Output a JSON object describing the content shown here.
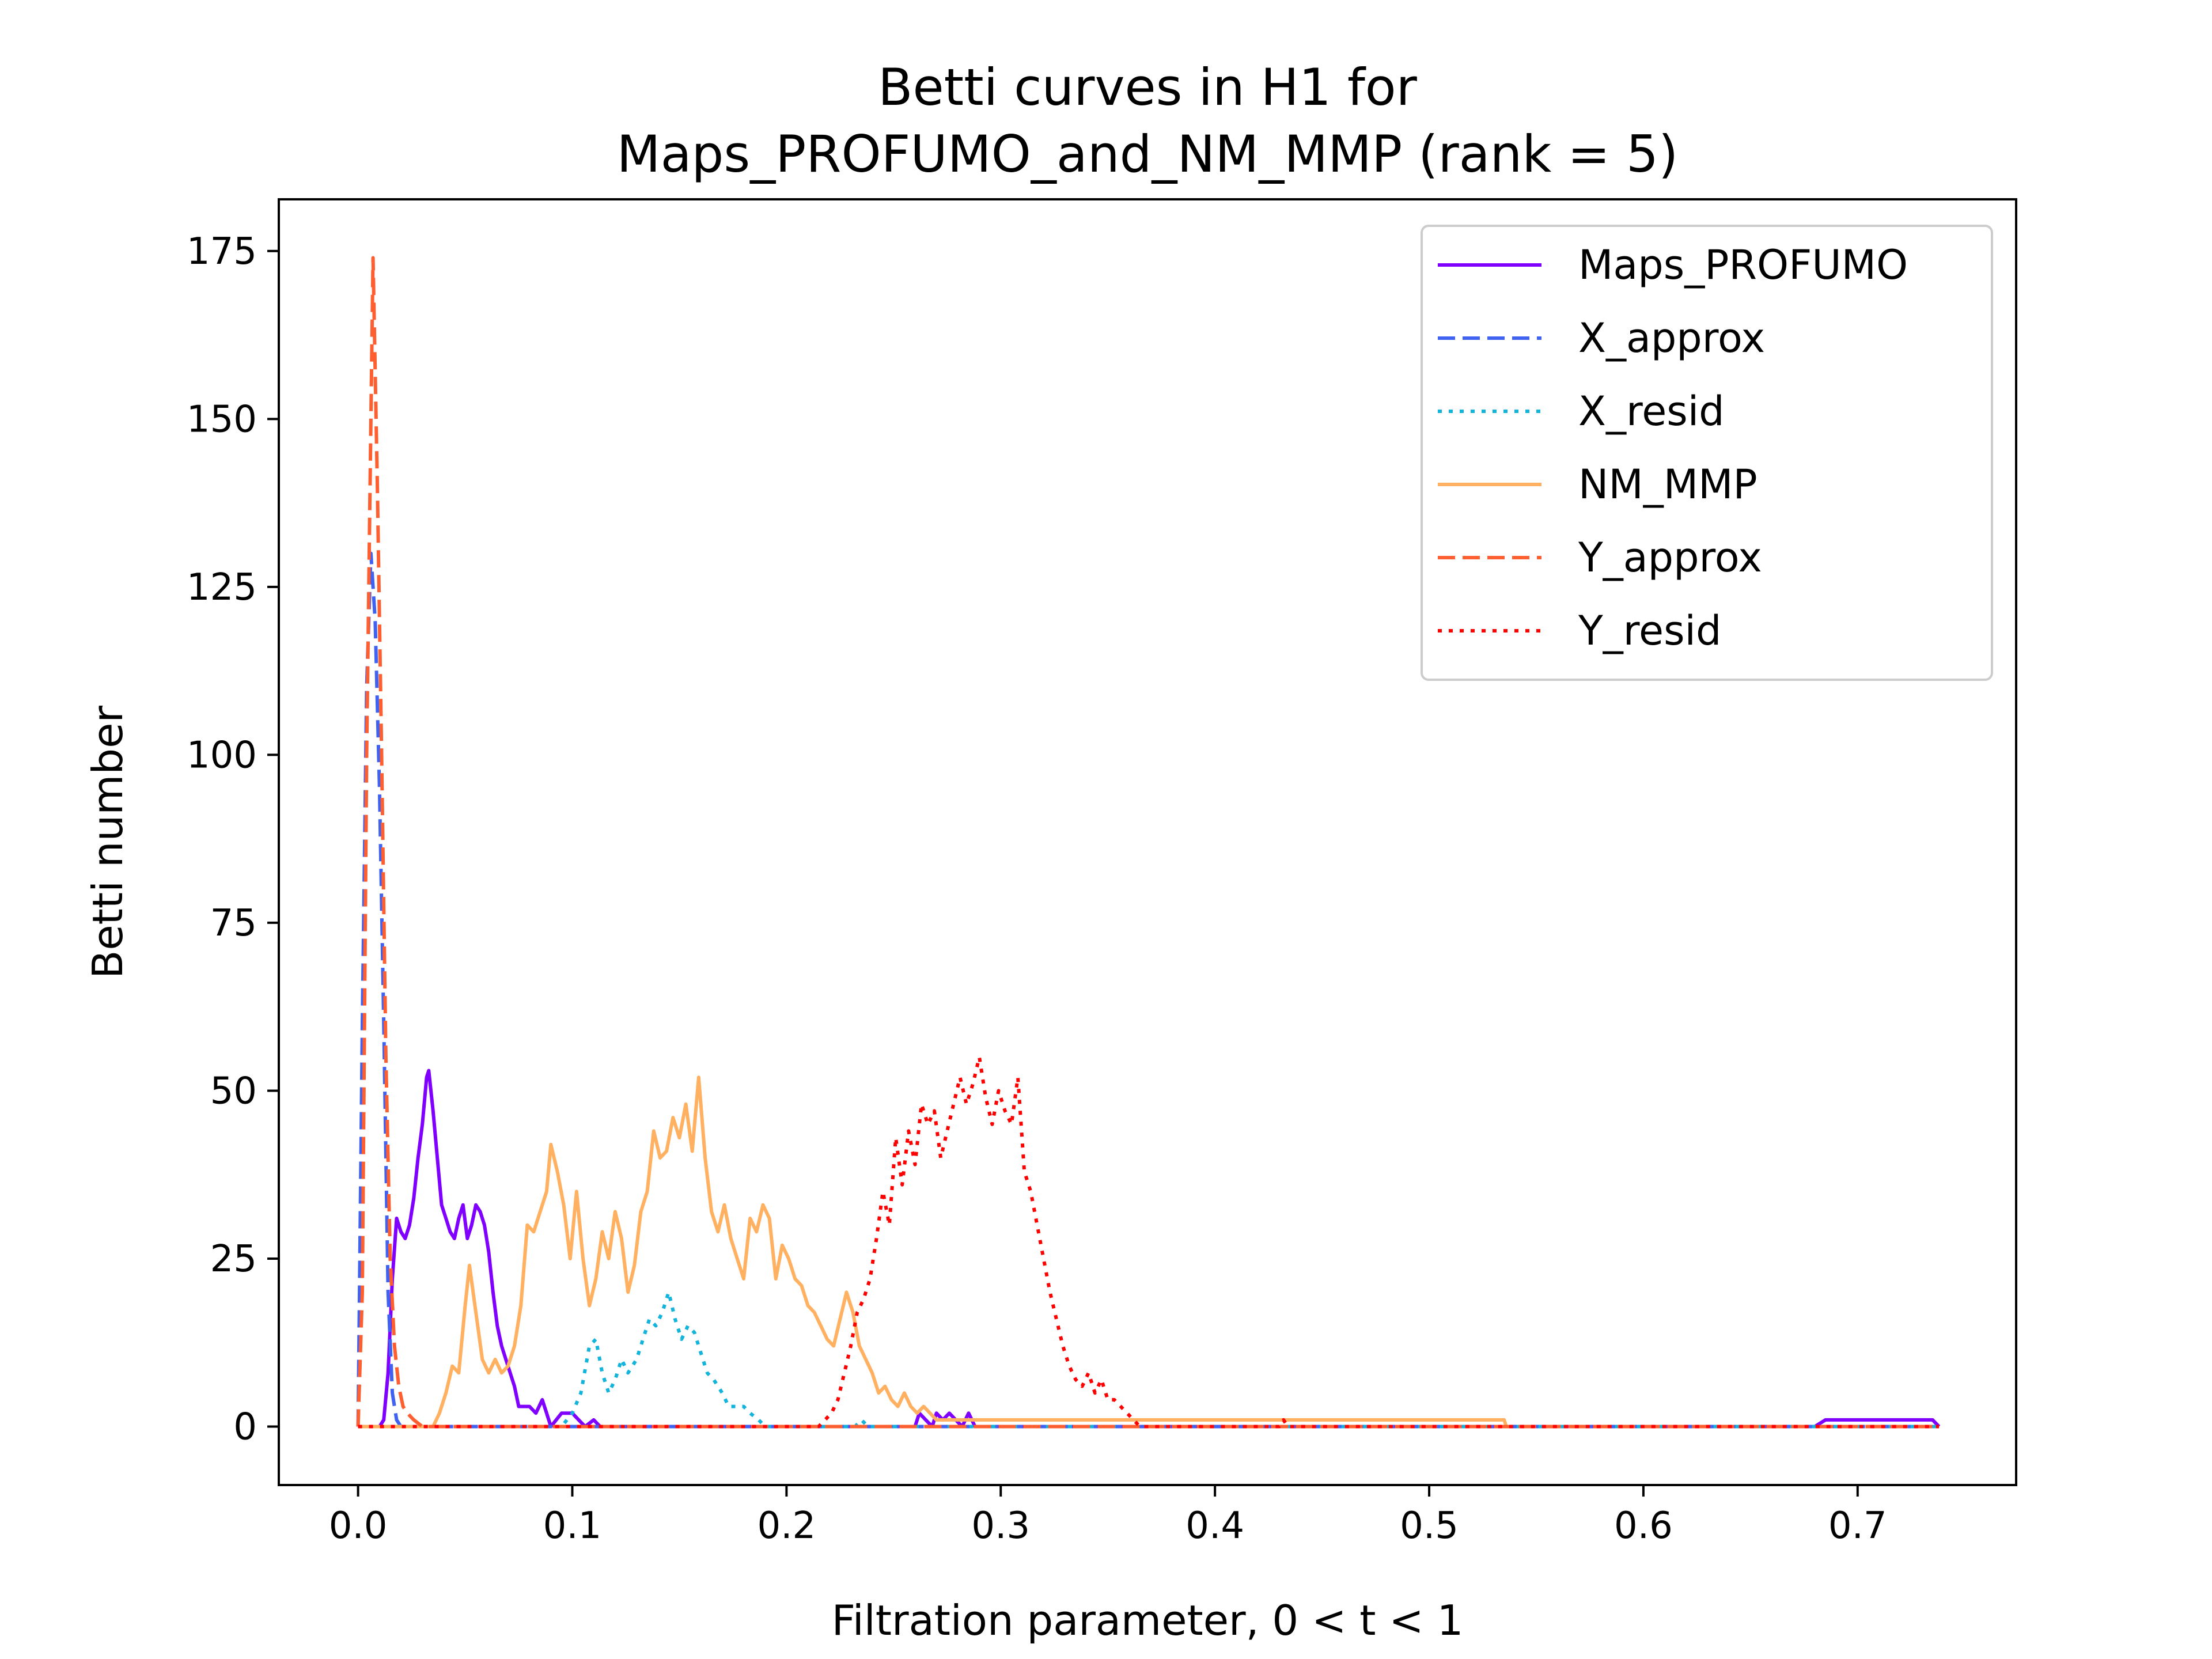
{
  "chart_data": {
    "type": "line",
    "title_line1": "Betti curves in H1 for",
    "title_line2": "Maps_PROFUMO_and_NM_MMP (rank = 5)",
    "xlabel": "Filtration parameter, 0 < t < 1",
    "ylabel": "Betti number",
    "xlim": [
      -0.037,
      0.774
    ],
    "ylim": [
      -8.7,
      182.7
    ],
    "xticks": [
      0.0,
      0.1,
      0.2,
      0.3,
      0.4,
      0.5,
      0.6,
      0.7
    ],
    "xtick_labels": [
      "0.0",
      "0.1",
      "0.2",
      "0.3",
      "0.4",
      "0.5",
      "0.6",
      "0.7"
    ],
    "yticks": [
      0,
      25,
      50,
      75,
      100,
      125,
      150,
      175
    ],
    "ytick_labels": [
      "0",
      "25",
      "50",
      "75",
      "100",
      "125",
      "150",
      "175"
    ],
    "grid": false,
    "legend_position": "top-right",
    "series": [
      {
        "name": "Maps_PROFUMO",
        "color": "#7f00ff",
        "dash": "solid",
        "points": [
          [
            0,
            0
          ],
          [
            0.01,
            0
          ],
          [
            0.012,
            1
          ],
          [
            0.014,
            8
          ],
          [
            0.016,
            22
          ],
          [
            0.018,
            31
          ],
          [
            0.02,
            29
          ],
          [
            0.022,
            28
          ],
          [
            0.024,
            30
          ],
          [
            0.026,
            34
          ],
          [
            0.028,
            40
          ],
          [
            0.03,
            45
          ],
          [
            0.032,
            52
          ],
          [
            0.033,
            53
          ],
          [
            0.035,
            47
          ],
          [
            0.037,
            40
          ],
          [
            0.039,
            33
          ],
          [
            0.041,
            31
          ],
          [
            0.043,
            29
          ],
          [
            0.045,
            28
          ],
          [
            0.047,
            31
          ],
          [
            0.049,
            33
          ],
          [
            0.051,
            28
          ],
          [
            0.053,
            30
          ],
          [
            0.055,
            33
          ],
          [
            0.057,
            32
          ],
          [
            0.059,
            30
          ],
          [
            0.061,
            26
          ],
          [
            0.063,
            20
          ],
          [
            0.065,
            15
          ],
          [
            0.067,
            12
          ],
          [
            0.07,
            9
          ],
          [
            0.073,
            6
          ],
          [
            0.075,
            3
          ],
          [
            0.08,
            3
          ],
          [
            0.083,
            2
          ],
          [
            0.086,
            4
          ],
          [
            0.088,
            2
          ],
          [
            0.09,
            0
          ],
          [
            0.095,
            2
          ],
          [
            0.1,
            2
          ],
          [
            0.103,
            1
          ],
          [
            0.106,
            0
          ],
          [
            0.11,
            1
          ],
          [
            0.113,
            0
          ],
          [
            0.26,
            0
          ],
          [
            0.262,
            2
          ],
          [
            0.265,
            1
          ],
          [
            0.268,
            0
          ],
          [
            0.27,
            2
          ],
          [
            0.273,
            1
          ],
          [
            0.276,
            2
          ],
          [
            0.279,
            1
          ],
          [
            0.282,
            0
          ],
          [
            0.285,
            2
          ],
          [
            0.288,
            0
          ],
          [
            0.68,
            0
          ],
          [
            0.685,
            1
          ],
          [
            0.735,
            1
          ],
          [
            0.738,
            0
          ]
        ]
      },
      {
        "name": "X_approx",
        "color": "#4062f0",
        "dash": "dashed",
        "points": [
          [
            0,
            0
          ],
          [
            0.002,
            60
          ],
          [
            0.004,
            110
          ],
          [
            0.006,
            130
          ],
          [
            0.008,
            120
          ],
          [
            0.01,
            95
          ],
          [
            0.012,
            60
          ],
          [
            0.014,
            20
          ],
          [
            0.016,
            5
          ],
          [
            0.018,
            1
          ],
          [
            0.02,
            0
          ],
          [
            0.738,
            0
          ]
        ]
      },
      {
        "name": "X_resid",
        "color": "#12b4dc",
        "dash": "dotted",
        "points": [
          [
            0,
            0
          ],
          [
            0.095,
            0
          ],
          [
            0.1,
            2
          ],
          [
            0.104,
            5
          ],
          [
            0.108,
            12
          ],
          [
            0.111,
            13
          ],
          [
            0.114,
            8
          ],
          [
            0.117,
            5
          ],
          [
            0.12,
            7
          ],
          [
            0.123,
            10
          ],
          [
            0.126,
            8
          ],
          [
            0.13,
            10
          ],
          [
            0.133,
            13
          ],
          [
            0.136,
            16
          ],
          [
            0.139,
            15
          ],
          [
            0.142,
            17
          ],
          [
            0.145,
            20
          ],
          [
            0.148,
            16
          ],
          [
            0.151,
            13
          ],
          [
            0.154,
            15
          ],
          [
            0.157,
            14
          ],
          [
            0.16,
            11
          ],
          [
            0.163,
            8
          ],
          [
            0.166,
            7
          ],
          [
            0.17,
            5
          ],
          [
            0.173,
            3
          ],
          [
            0.176,
            3
          ],
          [
            0.18,
            3
          ],
          [
            0.183,
            2
          ],
          [
            0.187,
            1
          ],
          [
            0.19,
            0
          ],
          [
            0.232,
            0
          ],
          [
            0.235,
            1
          ],
          [
            0.238,
            0
          ],
          [
            0.738,
            0
          ]
        ]
      },
      {
        "name": "NM_MMP",
        "color": "#ffb060",
        "dash": "solid",
        "points": [
          [
            0,
            0
          ],
          [
            0.035,
            0
          ],
          [
            0.038,
            2
          ],
          [
            0.041,
            5
          ],
          [
            0.044,
            9
          ],
          [
            0.047,
            8
          ],
          [
            0.05,
            18
          ],
          [
            0.052,
            24
          ],
          [
            0.055,
            17
          ],
          [
            0.058,
            10
          ],
          [
            0.061,
            8
          ],
          [
            0.064,
            10
          ],
          [
            0.067,
            8
          ],
          [
            0.07,
            9
          ],
          [
            0.073,
            12
          ],
          [
            0.076,
            18
          ],
          [
            0.079,
            30
          ],
          [
            0.082,
            29
          ],
          [
            0.085,
            32
          ],
          [
            0.088,
            35
          ],
          [
            0.09,
            42
          ],
          [
            0.093,
            38
          ],
          [
            0.096,
            33
          ],
          [
            0.099,
            25
          ],
          [
            0.102,
            35
          ],
          [
            0.105,
            25
          ],
          [
            0.108,
            18
          ],
          [
            0.111,
            22
          ],
          [
            0.114,
            29
          ],
          [
            0.117,
            25
          ],
          [
            0.12,
            32
          ],
          [
            0.123,
            28
          ],
          [
            0.126,
            20
          ],
          [
            0.129,
            24
          ],
          [
            0.132,
            32
          ],
          [
            0.135,
            35
          ],
          [
            0.138,
            44
          ],
          [
            0.141,
            40
          ],
          [
            0.144,
            41
          ],
          [
            0.147,
            46
          ],
          [
            0.15,
            43
          ],
          [
            0.153,
            48
          ],
          [
            0.156,
            41
          ],
          [
            0.159,
            52
          ],
          [
            0.162,
            40
          ],
          [
            0.165,
            32
          ],
          [
            0.168,
            29
          ],
          [
            0.171,
            33
          ],
          [
            0.174,
            28
          ],
          [
            0.177,
            25
          ],
          [
            0.18,
            22
          ],
          [
            0.183,
            31
          ],
          [
            0.186,
            29
          ],
          [
            0.189,
            33
          ],
          [
            0.192,
            31
          ],
          [
            0.195,
            22
          ],
          [
            0.198,
            27
          ],
          [
            0.201,
            25
          ],
          [
            0.204,
            22
          ],
          [
            0.207,
            21
          ],
          [
            0.21,
            18
          ],
          [
            0.213,
            17
          ],
          [
            0.216,
            15
          ],
          [
            0.219,
            13
          ],
          [
            0.222,
            12
          ],
          [
            0.225,
            16
          ],
          [
            0.228,
            20
          ],
          [
            0.231,
            17
          ],
          [
            0.234,
            12
          ],
          [
            0.237,
            10
          ],
          [
            0.24,
            8
          ],
          [
            0.243,
            5
          ],
          [
            0.246,
            6
          ],
          [
            0.249,
            4
          ],
          [
            0.252,
            3
          ],
          [
            0.255,
            5
          ],
          [
            0.258,
            3
          ],
          [
            0.261,
            2
          ],
          [
            0.264,
            3
          ],
          [
            0.267,
            2
          ],
          [
            0.27,
            1
          ],
          [
            0.535,
            1
          ],
          [
            0.536,
            0
          ]
        ]
      },
      {
        "name": "Y_approx",
        "color": "#fe5f31",
        "dash": "dashed",
        "points": [
          [
            0,
            0
          ],
          [
            0.002,
            20
          ],
          [
            0.004,
            100
          ],
          [
            0.006,
            150
          ],
          [
            0.007,
            174
          ],
          [
            0.009,
            140
          ],
          [
            0.011,
            100
          ],
          [
            0.013,
            55
          ],
          [
            0.015,
            25
          ],
          [
            0.017,
            12
          ],
          [
            0.019,
            6
          ],
          [
            0.021,
            3
          ],
          [
            0.023,
            2
          ],
          [
            0.026,
            1
          ],
          [
            0.03,
            0
          ],
          [
            0.738,
            0
          ]
        ]
      },
      {
        "name": "Y_resid",
        "color": "#ff0000",
        "dash": "dotted",
        "points": [
          [
            0,
            0
          ],
          [
            0.215,
            0
          ],
          [
            0.218,
            1
          ],
          [
            0.221,
            2
          ],
          [
            0.224,
            4
          ],
          [
            0.227,
            8
          ],
          [
            0.23,
            12
          ],
          [
            0.233,
            17
          ],
          [
            0.236,
            19
          ],
          [
            0.239,
            22
          ],
          [
            0.242,
            28
          ],
          [
            0.245,
            35
          ],
          [
            0.248,
            30
          ],
          [
            0.251,
            43
          ],
          [
            0.254,
            36
          ],
          [
            0.257,
            44
          ],
          [
            0.26,
            39
          ],
          [
            0.263,
            48
          ],
          [
            0.266,
            45
          ],
          [
            0.269,
            47
          ],
          [
            0.272,
            40
          ],
          [
            0.275,
            44
          ],
          [
            0.278,
            48
          ],
          [
            0.281,
            52
          ],
          [
            0.284,
            48
          ],
          [
            0.287,
            51
          ],
          [
            0.29,
            55
          ],
          [
            0.293,
            49
          ],
          [
            0.296,
            45
          ],
          [
            0.299,
            50
          ],
          [
            0.302,
            47
          ],
          [
            0.305,
            45
          ],
          [
            0.308,
            52
          ],
          [
            0.311,
            38
          ],
          [
            0.314,
            35
          ],
          [
            0.317,
            30
          ],
          [
            0.32,
            25
          ],
          [
            0.323,
            20
          ],
          [
            0.326,
            16
          ],
          [
            0.329,
            12
          ],
          [
            0.332,
            9
          ],
          [
            0.335,
            7
          ],
          [
            0.338,
            6
          ],
          [
            0.341,
            8
          ],
          [
            0.344,
            5
          ],
          [
            0.347,
            7
          ],
          [
            0.35,
            4
          ],
          [
            0.353,
            4
          ],
          [
            0.356,
            3
          ],
          [
            0.359,
            2
          ],
          [
            0.362,
            1
          ],
          [
            0.365,
            0
          ],
          [
            0.43,
            0
          ],
          [
            0.432,
            1
          ],
          [
            0.434,
            0
          ],
          [
            0.738,
            0
          ]
        ]
      }
    ]
  }
}
